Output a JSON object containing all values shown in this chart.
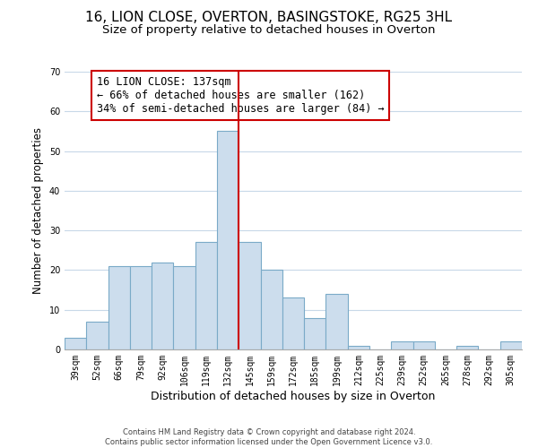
{
  "title": "16, LION CLOSE, OVERTON, BASINGSTOKE, RG25 3HL",
  "subtitle": "Size of property relative to detached houses in Overton",
  "xlabel": "Distribution of detached houses by size in Overton",
  "ylabel": "Number of detached properties",
  "categories": [
    "39sqm",
    "52sqm",
    "66sqm",
    "79sqm",
    "92sqm",
    "106sqm",
    "119sqm",
    "132sqm",
    "145sqm",
    "159sqm",
    "172sqm",
    "185sqm",
    "199sqm",
    "212sqm",
    "225sqm",
    "239sqm",
    "252sqm",
    "265sqm",
    "278sqm",
    "292sqm",
    "305sqm"
  ],
  "values": [
    3,
    7,
    21,
    21,
    22,
    21,
    27,
    55,
    27,
    20,
    13,
    8,
    14,
    1,
    0,
    2,
    2,
    0,
    1,
    0,
    2
  ],
  "bar_color": "#ccdded",
  "bar_edge_color": "#7aaac8",
  "vline_x_index": 7.5,
  "vline_color": "#cc0000",
  "ylim": [
    0,
    70
  ],
  "yticks": [
    0,
    10,
    20,
    30,
    40,
    50,
    60,
    70
  ],
  "annotation_title": "16 LION CLOSE: 137sqm",
  "annotation_line1": "← 66% of detached houses are smaller (162)",
  "annotation_line2": "34% of semi-detached houses are larger (84) →",
  "annotation_box_color": "#cc0000",
  "footer_line1": "Contains HM Land Registry data © Crown copyright and database right 2024.",
  "footer_line2": "Contains public sector information licensed under the Open Government Licence v3.0.",
  "background_color": "#ffffff",
  "grid_color": "#c8d8e8",
  "title_fontsize": 11,
  "subtitle_fontsize": 9.5,
  "xlabel_fontsize": 9,
  "ylabel_fontsize": 8.5,
  "tick_fontsize": 7,
  "annotation_fontsize": 8.5,
  "footer_fontsize": 6
}
